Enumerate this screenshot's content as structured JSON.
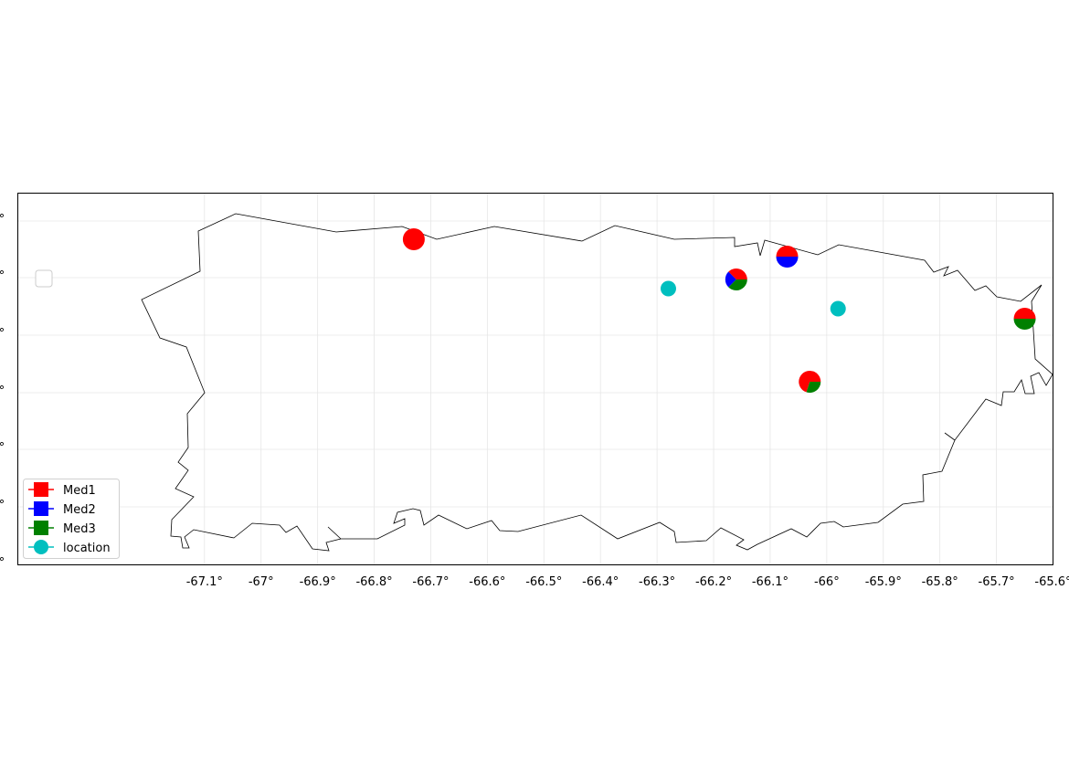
{
  "map": {
    "lon_range": [
      -67.43,
      -65.6
    ],
    "x_ticks": [
      -67.1,
      -67.0,
      -66.9,
      -66.8,
      -66.7,
      -66.6,
      -66.5,
      -66.4,
      -66.3,
      -66.2,
      -66.1,
      -66.0,
      -65.9,
      -65.8,
      -65.7,
      -65.6
    ],
    "x_tick_labels": [
      "-67.1°",
      "-67°",
      "-66.9°",
      "-66.8°",
      "-66.7°",
      "-66.6°",
      "-66.5°",
      "-66.4°",
      "-66.3°",
      "-66.2°",
      "-66.1°",
      "-66°",
      "-65.9°",
      "-65.8°",
      "-65.7°",
      "-65.6°"
    ],
    "y_tick_labels": [
      "°",
      "°",
      "°",
      "°",
      "°",
      "°",
      "°"
    ],
    "grid": true,
    "coastline_color": "#000000"
  },
  "legend": {
    "placement": "lower-left",
    "items": [
      {
        "label": "Med1",
        "color": "#ff0000",
        "marker": "square"
      },
      {
        "label": "Med2",
        "color": "#0000ff",
        "marker": "square"
      },
      {
        "label": "Med3",
        "color": "#008000",
        "marker": "square"
      },
      {
        "label": "location",
        "color": "#00bfbf",
        "marker": "circle"
      }
    ]
  },
  "chart_data": {
    "type": "scatter",
    "x_unit": "degrees longitude",
    "series": [
      {
        "name": "Med1",
        "color": "#ff0000"
      },
      {
        "name": "Med2",
        "color": "#0000ff"
      },
      {
        "name": "Med3",
        "color": "#008000"
      },
      {
        "name": "location",
        "color": "#00bfbf"
      }
    ],
    "pie_markers": [
      {
        "lon": -66.73,
        "slices": {
          "Med1": 1.0,
          "Med2": 0.0,
          "Med3": 0.0
        }
      },
      {
        "lon": -66.07,
        "slices": {
          "Med1": 0.5,
          "Med2": 0.5,
          "Med3": 0.0
        }
      },
      {
        "lon": -66.16,
        "slices": {
          "Med1": 0.375,
          "Med2": 0.25,
          "Med3": 0.375
        }
      },
      {
        "lon": -65.65,
        "slices": {
          "Med1": 0.5,
          "Med2": 0.0,
          "Med3": 0.5
        }
      },
      {
        "lon": -66.03,
        "slices": {
          "Med1": 0.7,
          "Med2": 0.0,
          "Med3": 0.3
        }
      }
    ],
    "location_points": [
      {
        "lon": -66.28
      },
      {
        "lon": -65.98
      }
    ]
  }
}
